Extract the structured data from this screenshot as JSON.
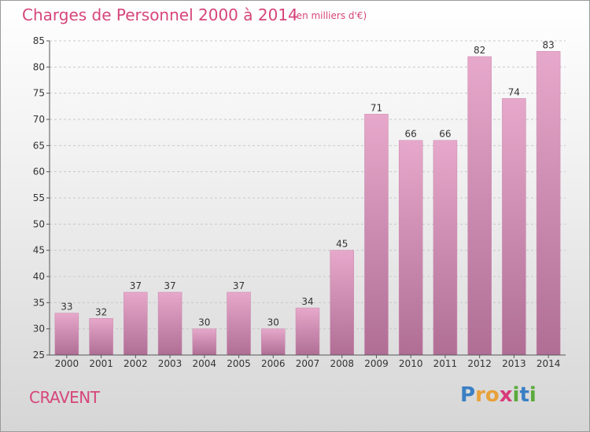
{
  "title": "Charges de Personnel 2000 à 2014",
  "subtitle": "(en milliers d'€)",
  "commune": "CRAVENT",
  "logo": {
    "letters": [
      "P",
      "r",
      "o",
      "x",
      "i",
      "t",
      "i"
    ],
    "colors": [
      "#3a7fc4",
      "#e8a13a",
      "#e8a13a",
      "#d83a7a",
      "#5aaa3a",
      "#3a7fc4",
      "#5aaa3a"
    ]
  },
  "chart_data": {
    "type": "bar",
    "categories": [
      "2000",
      "2001",
      "2002",
      "2003",
      "2004",
      "2005",
      "2006",
      "2007",
      "2008",
      "2009",
      "2010",
      "2011",
      "2012",
      "2013",
      "2014"
    ],
    "values": [
      33,
      32,
      37,
      37,
      30,
      37,
      30,
      34,
      45,
      71,
      66,
      66,
      82,
      74,
      83
    ],
    "ylim": [
      25,
      85
    ],
    "yticks": [
      25,
      30,
      35,
      40,
      45,
      50,
      55,
      60,
      65,
      70,
      75,
      80,
      85
    ],
    "grid": true,
    "bar_color": "#d98cb5"
  }
}
